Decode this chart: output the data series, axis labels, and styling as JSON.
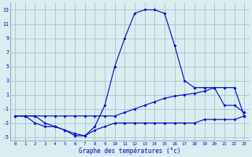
{
  "title": "Graphe des températures (°c)",
  "hours": [
    0,
    1,
    2,
    3,
    4,
    5,
    6,
    7,
    8,
    9,
    10,
    11,
    12,
    13,
    14,
    15,
    16,
    17,
    18,
    19,
    20,
    21,
    22,
    23
  ],
  "temp": [
    -2,
    -2,
    -2,
    -3,
    -3.5,
    -4,
    -4.5,
    -4.8,
    -3.5,
    -0.5,
    5,
    9,
    12.5,
    13,
    13,
    12.5,
    8,
    3,
    2,
    2,
    2,
    -0.5,
    -0.5,
    -1.5
  ],
  "min_vals": [
    -2,
    -2,
    -3,
    -3.5,
    -3.5,
    -4,
    -4.8,
    -4.8,
    -4,
    -3.5,
    -3,
    -3,
    -3,
    -3,
    -3,
    -3,
    -3,
    -3,
    -3,
    -2.5,
    -2.5,
    -2.5,
    -2.5,
    -2
  ],
  "max_vals": [
    -2,
    -2,
    -2,
    -2,
    -2,
    -2,
    -2,
    -2,
    -2,
    -2,
    -2,
    -1.5,
    -1,
    -0.5,
    0,
    0.5,
    0.8,
    1,
    1.2,
    1.5,
    2,
    2,
    2,
    -2
  ],
  "line_color": "#0000cc",
  "bg_color": "#d8eef0",
  "grid_color": "#a0b8c8",
  "ylim": [
    -5.5,
    14
  ],
  "yticks": [
    -5,
    -3,
    -1,
    1,
    3,
    5,
    7,
    9,
    11,
    13
  ],
  "xlim": [
    -0.5,
    23.5
  ]
}
